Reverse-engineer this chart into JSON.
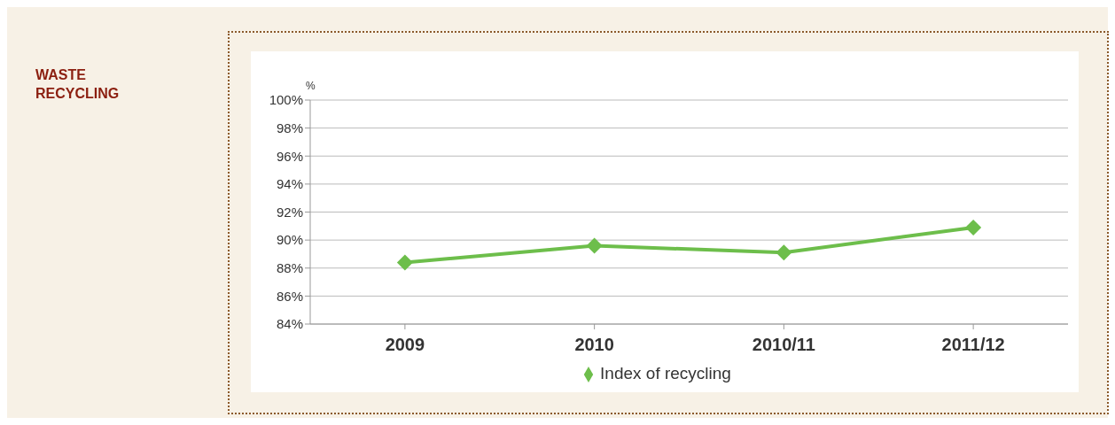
{
  "chart_data": {
    "type": "line",
    "title": "WASTE RECYCLING",
    "ylabel": "%",
    "categories": [
      "2009",
      "2010",
      "2010/11",
      "2011/12"
    ],
    "series": [
      {
        "name": "Index of recycling",
        "color": "#6dbe4b",
        "values": [
          88.4,
          89.6,
          89.1,
          90.9
        ]
      }
    ],
    "ylim": [
      84,
      100
    ],
    "yticks": [
      {
        "value": 84,
        "label": "84%"
      },
      {
        "value": 86,
        "label": "86%"
      },
      {
        "value": 88,
        "label": "88%"
      },
      {
        "value": 90,
        "label": "90%"
      },
      {
        "value": 92,
        "label": "92%"
      },
      {
        "value": 94,
        "label": "94%"
      },
      {
        "value": 96,
        "label": "96%"
      },
      {
        "value": 98,
        "label": "98%"
      },
      {
        "value": 100,
        "label": "100%"
      }
    ],
    "grid": "y",
    "legend": "bottom",
    "marker": "diamond",
    "line_style": "solid"
  }
}
